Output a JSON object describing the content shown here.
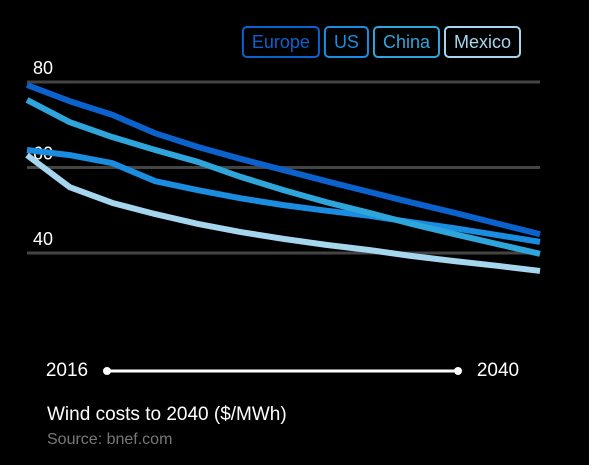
{
  "chart_data": {
    "type": "line",
    "title": "Wind costs to 2040 ($/MWh)",
    "source": "Source: bnef.com",
    "x": [
      2016,
      2018,
      2020,
      2022,
      2024,
      2026,
      2028,
      2030,
      2032,
      2034,
      2036,
      2038,
      2040
    ],
    "xlim": [
      2016,
      2040
    ],
    "xticks": [
      2016,
      2040
    ],
    "ylim": [
      30,
      85
    ],
    "yticks": [
      40,
      60,
      80
    ],
    "grid": true,
    "series": [
      {
        "name": "Europe",
        "color": "#0b62cc",
        "values": [
          79.3,
          75.5,
          72.3,
          68,
          64.8,
          62,
          59.4,
          56.8,
          54.3,
          51.8,
          49.4,
          46.9,
          44.4
        ]
      },
      {
        "name": "US",
        "color": "#1a8de0",
        "values": [
          64.1,
          62.9,
          61,
          56.8,
          54.7,
          52.8,
          51.2,
          49.9,
          48.7,
          47.2,
          45.8,
          44.2,
          42.6
        ]
      },
      {
        "name": "China",
        "color": "#2ea6dc",
        "values": [
          75.8,
          70.6,
          67.1,
          64.1,
          61.3,
          57.8,
          54.7,
          51.9,
          49.4,
          46.8,
          44.4,
          42.1,
          39.8
        ]
      },
      {
        "name": "Mexico",
        "color": "#a6d6ee",
        "values": [
          62.9,
          55.4,
          51.7,
          49.1,
          46.8,
          44.9,
          43.3,
          41.9,
          40.7,
          39.3,
          38.1,
          37,
          35.8
        ]
      }
    ]
  }
}
